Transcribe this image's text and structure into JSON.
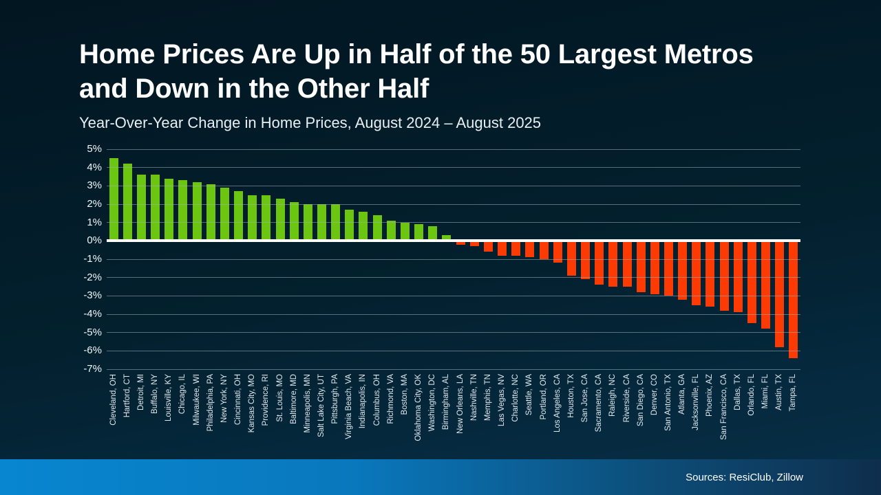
{
  "header": {
    "title_line_1": "Home Prices Are Up in Half of the 50 Largest Metros",
    "title_line_2": "and Down in the Other Half",
    "subtitle": "Year-Over-Year Change in Home Prices, August 2024 – August 2025"
  },
  "footer": {
    "source": "Sources: ResiClub, Zillow"
  },
  "colors": {
    "positive_bar": "#6CC510",
    "negative_bar": "#FB3A04",
    "zero_line": "#FFFFFF",
    "gridline": "rgba(160,174,184,0.55)",
    "background_top": "#021621",
    "background_bottom": "#07304A",
    "footer_left": "#0886D0",
    "footer_right": "#0E2E4C",
    "text": "#FFFFFF"
  },
  "chart_data": {
    "type": "bar",
    "title": "Home Prices Are Up in Half of the 50 Largest Metros and Down in the Other Half",
    "subtitle": "Year-Over-Year Change in Home Prices, August 2024 – August 2025",
    "xlabel": "",
    "ylabel": "",
    "ylim": [
      -7,
      5
    ],
    "yticks": [
      5,
      4,
      3,
      2,
      1,
      0,
      -1,
      -2,
      -3,
      -4,
      -5,
      -6,
      -7
    ],
    "ytick_suffix": "%",
    "grid": true,
    "legend": false,
    "categories": [
      "Cleveland, OH",
      "Hartford, CT",
      "Detroit, MI",
      "Buffalo, NY",
      "Louisville, KY",
      "Chicago, IL",
      "Milwaukee, WI",
      "Philadelphia, PA",
      "New York, NY",
      "Cincinnati, OH",
      "Kansas City, MO",
      "Providence, RI",
      "St. Louis, MO",
      "Baltimore, MD",
      "Minneapolis, MN",
      "Salt Lake City, UT",
      "Pittsburgh, PA",
      "Virginia Beach, VA",
      "Indianapolis, IN",
      "Columbus, OH",
      "Richmond, VA",
      "Boston, MA",
      "Oklahoma City, OK",
      "Washington, DC",
      "Birmingham, AL",
      "New Orleans, LA",
      "Nashville, TN",
      "Memphis, TN",
      "Las Vegas, NV",
      "Charlotte, NC",
      "Seattle, WA",
      "Portland, OR",
      "Los Angeles, CA",
      "Houston, TX",
      "San Jose, CA",
      "Sacramento, CA",
      "Raleigh, NC",
      "Riverside, CA",
      "San Diego, CA",
      "Denver, CO",
      "San Antonio, TX",
      "Atlanta, GA",
      "Jacksonville, FL",
      "Phoenix, AZ",
      "San Francisco, CA",
      "Dallas, TX",
      "Orlando, FL",
      "Miami, FL",
      "Austin, TX",
      "Tampa, FL"
    ],
    "values": [
      4.5,
      4.2,
      3.6,
      3.6,
      3.4,
      3.3,
      3.2,
      3.1,
      2.9,
      2.7,
      2.5,
      2.5,
      2.3,
      2.1,
      2.0,
      2.0,
      2.0,
      1.7,
      1.6,
      1.4,
      1.1,
      1.0,
      0.9,
      0.8,
      0.3,
      -0.2,
      -0.3,
      -0.6,
      -0.8,
      -0.8,
      -0.9,
      -1.0,
      -1.2,
      -1.9,
      -2.1,
      -2.4,
      -2.5,
      -2.5,
      -2.8,
      -2.9,
      -3.0,
      -3.2,
      -3.5,
      -3.6,
      -3.8,
      -3.9,
      -4.5,
      -4.8,
      -5.8,
      -6.4
    ]
  }
}
